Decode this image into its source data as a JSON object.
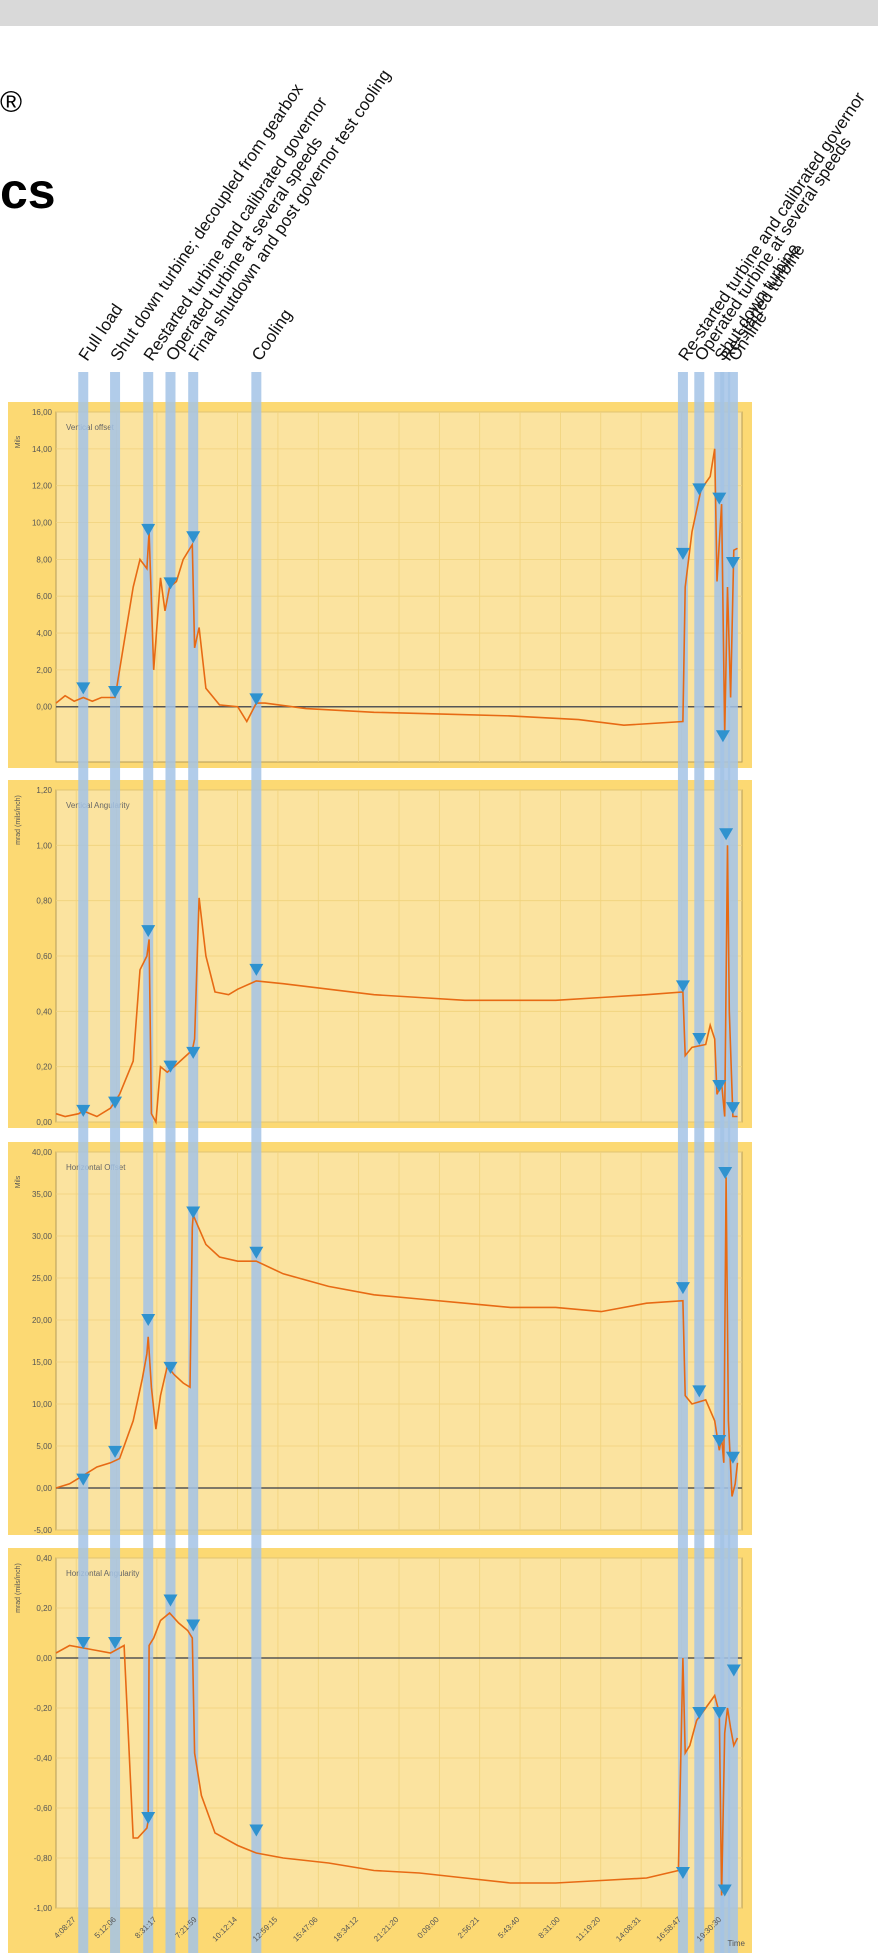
{
  "header_fragments": {
    "registered": "®",
    "cs": "cs"
  },
  "chart_data": {
    "type": "line",
    "x_ticks": [
      "4:08:27",
      "5:12:06",
      "8:31:17",
      "7:21:59",
      "10:12:14",
      "12:59:15",
      "15:47:06",
      "18:34:12",
      "21:21:20",
      "0:09:00",
      "2:56:21",
      "5:43:40",
      "8:31:00",
      "11:19:20",
      "14:08:31",
      "16:58:47",
      "19:30:30"
    ],
    "x_axis_title": "Time",
    "events": [
      {
        "label": "Full load",
        "x": 0.6
      },
      {
        "label": "Shut down turbine; decoupled from gearbox",
        "x": 1.3
      },
      {
        "label": "Restarted turbine and calibrated governor",
        "x": 2.03
      },
      {
        "label": "Operated turbine at several speeds",
        "x": 2.52
      },
      {
        "label": "Final shutdown and post governor test cooling",
        "x": 3.02
      },
      {
        "label": "Cooling",
        "x": 4.41
      },
      {
        "label": "Re-started turbine and calibrated governor",
        "x": 13.8
      },
      {
        "label": "Operated turbine at several speeds",
        "x": 14.16
      },
      {
        "label": "Shut down turbine",
        "x": 14.6
      },
      {
        "label": "Re-started turbine",
        "x": 14.73
      },
      {
        "label": "On-line",
        "x": 14.9
      }
    ],
    "panels": [
      {
        "title": "Vertical offset",
        "unit": "Mils",
        "ylim": [
          -3,
          16
        ],
        "ticks": [
          "16,00",
          "14,00",
          "12,00",
          "10,00",
          "8,00",
          "6,00",
          "4,00",
          "2,00",
          "0,00"
        ],
        "tick_values": [
          16,
          14,
          12,
          10,
          8,
          6,
          4,
          2,
          0
        ],
        "x": [
          0,
          0.2,
          0.4,
          0.6,
          0.8,
          1.0,
          1.3,
          1.5,
          1.7,
          1.85,
          2.0,
          2.05,
          2.15,
          2.3,
          2.4,
          2.5,
          2.65,
          2.8,
          3.0,
          3.05,
          3.15,
          3.3,
          3.6,
          4.0,
          4.2,
          4.41,
          4.6,
          5.5,
          7.0,
          8.5,
          10.0,
          11.5,
          12.5,
          13.8,
          13.85,
          14.0,
          14.2,
          14.4,
          14.5,
          14.55,
          14.65,
          14.72,
          14.78,
          14.85,
          14.92,
          15.0
        ],
        "y": [
          0.2,
          0.6,
          0.3,
          0.5,
          0.3,
          0.5,
          0.5,
          3.5,
          6.5,
          8.0,
          7.5,
          9.5,
          2.0,
          7.0,
          5.2,
          6.5,
          6.8,
          8.0,
          8.8,
          3.2,
          4.3,
          1.0,
          0.1,
          0.0,
          -0.8,
          0.2,
          0.2,
          -0.1,
          -0.3,
          -0.4,
          -0.5,
          -0.7,
          -1.0,
          -0.8,
          6.5,
          9.5,
          11.8,
          12.5,
          14.0,
          6.8,
          11.0,
          -1.5,
          6.5,
          0.5,
          8.5,
          8.6
        ],
        "markers": [
          {
            "x": 0.6,
            "y": 1.0
          },
          {
            "x": 1.3,
            "y": 0.8
          },
          {
            "x": 2.03,
            "y": 9.6
          },
          {
            "x": 2.52,
            "y": 6.7
          },
          {
            "x": 3.02,
            "y": 9.2
          },
          {
            "x": 4.41,
            "y": 0.4
          },
          {
            "x": 13.8,
            "y": 8.3
          },
          {
            "x": 14.16,
            "y": 11.8
          },
          {
            "x": 14.6,
            "y": 11.3
          },
          {
            "x": 14.68,
            "y": -1.6
          },
          {
            "x": 14.9,
            "y": 7.8
          }
        ]
      },
      {
        "title": "Vertical Angularity",
        "unit": "mrad (mils/inch)",
        "ylim": [
          0,
          1.2
        ],
        "ticks": [
          "1,20",
          "1,00",
          "0,80",
          "0,60",
          "0,40",
          "0,20",
          "0,00"
        ],
        "tick_values": [
          1.2,
          1.0,
          0.8,
          0.6,
          0.4,
          0.2,
          0.0
        ],
        "x": [
          0,
          0.2,
          0.5,
          0.6,
          0.9,
          1.2,
          1.4,
          1.7,
          1.85,
          2.0,
          2.05,
          2.1,
          2.2,
          2.3,
          2.45,
          2.6,
          2.8,
          3.0,
          3.05,
          3.15,
          3.3,
          3.5,
          3.8,
          4.0,
          4.41,
          5.0,
          6.0,
          7.0,
          8.0,
          9.0,
          10.0,
          11.0,
          12.0,
          13.0,
          13.8,
          13.85,
          14.0,
          14.3,
          14.4,
          14.5,
          14.55,
          14.65,
          14.72,
          14.78,
          14.82,
          14.9,
          15.0
        ],
        "y": [
          0.03,
          0.02,
          0.03,
          0.04,
          0.02,
          0.05,
          0.1,
          0.22,
          0.55,
          0.6,
          0.66,
          0.03,
          0.0,
          0.2,
          0.18,
          0.2,
          0.23,
          0.26,
          0.3,
          0.81,
          0.6,
          0.47,
          0.46,
          0.48,
          0.51,
          0.5,
          0.48,
          0.46,
          0.45,
          0.44,
          0.44,
          0.44,
          0.45,
          0.46,
          0.47,
          0.24,
          0.27,
          0.28,
          0.35,
          0.3,
          0.1,
          0.14,
          0.02,
          1.0,
          0.4,
          0.02,
          0.02
        ],
        "markers": [
          {
            "x": 0.6,
            "y": 0.04
          },
          {
            "x": 1.3,
            "y": 0.07
          },
          {
            "x": 2.03,
            "y": 0.69
          },
          {
            "x": 2.52,
            "y": 0.2
          },
          {
            "x": 3.02,
            "y": 0.25
          },
          {
            "x": 4.41,
            "y": 0.55
          },
          {
            "x": 13.8,
            "y": 0.49
          },
          {
            "x": 14.16,
            "y": 0.3
          },
          {
            "x": 14.6,
            "y": 0.13
          },
          {
            "x": 14.75,
            "y": 1.04
          },
          {
            "x": 14.9,
            "y": 0.05
          }
        ]
      },
      {
        "title": "Horizontal Offset",
        "unit": "Mils",
        "ylim": [
          -5,
          40
        ],
        "ticks": [
          "40,00",
          "35,00",
          "30,00",
          "25,00",
          "20,00",
          "15,00",
          "10,00",
          "5,00",
          "0,00",
          "-5,00"
        ],
        "tick_values": [
          40,
          35,
          30,
          25,
          20,
          15,
          10,
          5,
          0,
          -5
        ],
        "x": [
          0,
          0.3,
          0.6,
          0.9,
          1.2,
          1.4,
          1.7,
          1.9,
          2.0,
          2.03,
          2.1,
          2.2,
          2.3,
          2.45,
          2.6,
          2.8,
          2.95,
          3.0,
          3.02,
          3.1,
          3.3,
          3.6,
          4.0,
          4.41,
          5.0,
          6.0,
          7.0,
          8.0,
          9.0,
          10.0,
          11.0,
          12.0,
          13.0,
          13.8,
          13.85,
          14.0,
          14.3,
          14.5,
          14.6,
          14.65,
          14.7,
          14.75,
          14.8,
          14.88,
          14.95,
          15.0
        ],
        "y": [
          0.0,
          0.5,
          1.5,
          2.5,
          3.0,
          3.5,
          8.0,
          13.0,
          16.0,
          18.0,
          12.0,
          7.0,
          11.0,
          14.5,
          13.5,
          12.5,
          12.0,
          31.0,
          32.5,
          31.5,
          29.0,
          27.5,
          27.0,
          27.0,
          25.5,
          24.0,
          23.0,
          22.5,
          22.0,
          21.5,
          21.5,
          21.0,
          22.0,
          22.3,
          11.0,
          10.0,
          10.5,
          8.0,
          4.5,
          6.0,
          3.0,
          37.0,
          8.0,
          -1.0,
          0.5,
          3.0
        ],
        "markers": [
          {
            "x": 0.6,
            "y": 1.0
          },
          {
            "x": 1.3,
            "y": 4.3
          },
          {
            "x": 2.03,
            "y": 20.0
          },
          {
            "x": 2.52,
            "y": 14.3
          },
          {
            "x": 3.02,
            "y": 32.8
          },
          {
            "x": 4.41,
            "y": 28.0
          },
          {
            "x": 13.8,
            "y": 23.8
          },
          {
            "x": 14.16,
            "y": 11.5
          },
          {
            "x": 14.6,
            "y": 5.6
          },
          {
            "x": 14.73,
            "y": 37.5
          },
          {
            "x": 14.9,
            "y": 3.6
          }
        ]
      },
      {
        "title": "Horizontal Angularity",
        "unit": "mrad (mils/inch)",
        "ylim": [
          -1.0,
          0.4
        ],
        "ticks": [
          "0,40",
          "0,20",
          "0,00",
          "-0,20",
          "-0,40",
          "-0,60",
          "-0,80",
          "-1,00"
        ],
        "tick_values": [
          0.4,
          0.2,
          0.0,
          -0.2,
          -0.4,
          -0.6,
          -0.8,
          -1.0
        ],
        "x": [
          0,
          0.3,
          0.6,
          0.9,
          1.2,
          1.5,
          1.7,
          1.8,
          2.0,
          2.03,
          2.05,
          2.15,
          2.3,
          2.5,
          2.7,
          2.9,
          3.0,
          3.05,
          3.2,
          3.5,
          4.0,
          4.41,
          5.0,
          6.0,
          7.0,
          8.0,
          9.0,
          10.0,
          11.0,
          12.0,
          13.0,
          13.7,
          13.8,
          13.85,
          13.95,
          14.1,
          14.3,
          14.5,
          14.6,
          14.65,
          14.72,
          14.78,
          14.85,
          14.92,
          15.0
        ],
        "y": [
          0.02,
          0.05,
          0.04,
          0.03,
          0.02,
          0.05,
          -0.72,
          -0.72,
          -0.68,
          -0.65,
          0.05,
          0.08,
          0.15,
          0.18,
          0.14,
          0.11,
          0.08,
          -0.38,
          -0.55,
          -0.7,
          -0.75,
          -0.78,
          -0.8,
          -0.82,
          -0.85,
          -0.86,
          -0.88,
          -0.9,
          -0.9,
          -0.89,
          -0.88,
          -0.85,
          0.0,
          -0.38,
          -0.35,
          -0.25,
          -0.2,
          -0.15,
          -0.22,
          -0.95,
          -0.3,
          -0.2,
          -0.28,
          -0.35,
          -0.32
        ],
        "markers": [
          {
            "x": 0.6,
            "y": 0.06
          },
          {
            "x": 1.3,
            "y": 0.06
          },
          {
            "x": 2.03,
            "y": -0.64
          },
          {
            "x": 2.52,
            "y": 0.23
          },
          {
            "x": 3.02,
            "y": 0.13
          },
          {
            "x": 4.41,
            "y": -0.69
          },
          {
            "x": 13.8,
            "y": -0.86
          },
          {
            "x": 14.16,
            "y": -0.22
          },
          {
            "x": 14.6,
            "y": -0.22
          },
          {
            "x": 14.72,
            "y": -0.93
          },
          {
            "x": 14.92,
            "y": -0.05
          }
        ]
      }
    ],
    "colors": {
      "band": "#fcd973",
      "plot": "#fbe39f",
      "line": "#e76a14",
      "event": "#a3c3e6",
      "marker": "#2f92cf",
      "baseline": "#555555"
    }
  }
}
